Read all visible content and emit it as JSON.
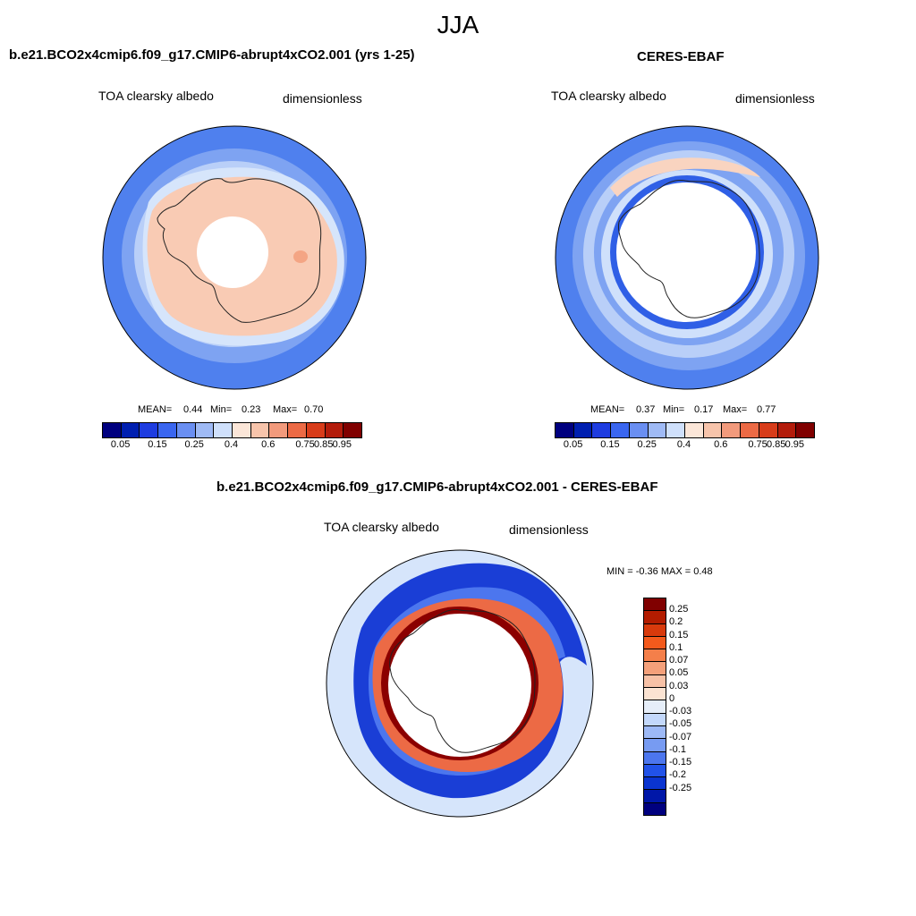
{
  "title": "JJA",
  "panels": [
    {
      "id": "model",
      "title": "b.e21.BCO2x4cmip6.f09_g17.CMIP6-abrupt4xCO2.001 (yrs 1-25)",
      "left_label": "TOA clearsky albedo",
      "right_label": "dimensionless",
      "stats": {
        "mean_label": "MEAN=",
        "mean": "0.44",
        "min_label": "Min=",
        "min": "0.23",
        "max_label": "Max=",
        "max": "0.70"
      }
    },
    {
      "id": "obs",
      "title": "CERES-EBAF",
      "left_label": "TOA clearsky albedo",
      "right_label": "dimensionless",
      "stats": {
        "mean_label": "MEAN=",
        "mean": "0.37",
        "min_label": "Min=",
        "min": "0.17",
        "max_label": "Max=",
        "max": "0.77"
      }
    },
    {
      "id": "diff",
      "title": "b.e21.BCO2x4cmip6.f09_g17.CMIP6-abrupt4xCO2.001 - CERES-EBAF",
      "left_label": "TOA clearsky albedo",
      "right_label": "dimensionless",
      "stats_text": "MIN =  -0.36 MAX =   0.48"
    }
  ],
  "colorbar_abs": {
    "colors": [
      "#00007f",
      "#001fb0",
      "#1e3ce0",
      "#3a66f0",
      "#6a8ff2",
      "#9fbaf5",
      "#cfe0fb",
      "#fbe6d8",
      "#f7c4ab",
      "#f29a7c",
      "#ec6a45",
      "#d83c1a",
      "#b31c0b",
      "#800000"
    ],
    "tick_labels": [
      "0.05",
      "0.15",
      "0.25",
      "0.4",
      "0.6",
      "0.75",
      "0.85",
      "0.95"
    ]
  },
  "colorbar_diff": {
    "colors": [
      "#800000",
      "#b31c00",
      "#d83a0c",
      "#f45a1c",
      "#f47f4a",
      "#f4a07a",
      "#f7c1a6",
      "#fbe3d2",
      "#e6eef9",
      "#c3d8fb",
      "#9db9f6",
      "#779bf2",
      "#4c76ee",
      "#2152e8",
      "#0a34d0",
      "#0017a8",
      "#00007f"
    ],
    "tick_labels": [
      "0.25",
      "0.2",
      "0.15",
      "0.1",
      "0.07",
      "0.05",
      "0.03",
      "0",
      "-0.03",
      "-0.05",
      "-0.07",
      "-0.1",
      "-0.15",
      "-0.2",
      "-0.25"
    ]
  },
  "colors": {
    "ocean_blue": "#4f80ee",
    "ocean_mid": "#7ea3f2",
    "ocean_light": "#b9cff8",
    "ocean_pale": "#d6e5fb",
    "land_peach": "#f9cbb4",
    "deep_blue": "#1a3ed6",
    "dark_red": "#8b0000"
  }
}
